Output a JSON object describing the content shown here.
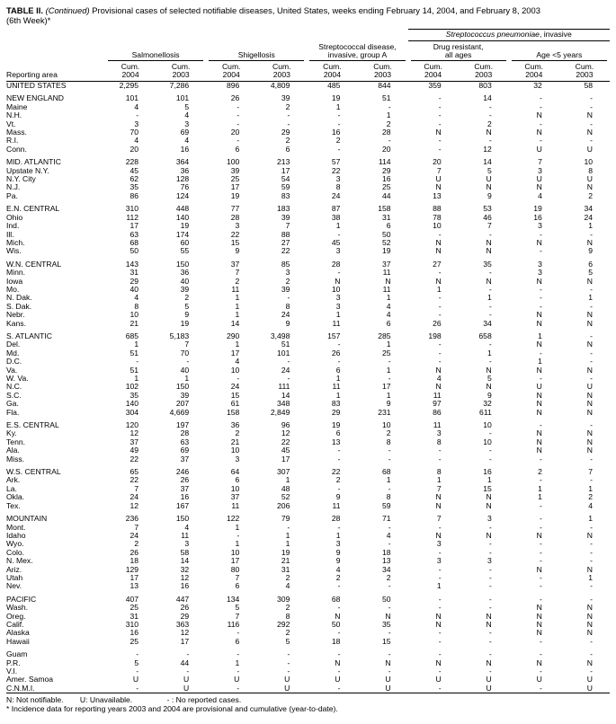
{
  "title": {
    "label": "TABLE II.",
    "continued": "(Continued)",
    "text": "Provisional cases of selected notifiable diseases, United States, weeks ending February 14, 2004, and February 8, 2003",
    "week": "(6th Week)*"
  },
  "header": {
    "reporting_area": "Reporting area",
    "cum": "Cum.",
    "years": [
      "2004",
      "2003"
    ],
    "groups": [
      "Salmonellosis",
      "Shigellosis",
      "Streptococcal disease,\ninvasive, group A",
      "Drug resistant,\nall ages",
      "Age <5 years"
    ],
    "strep_pneu_italic": "Streptococcus pneumoniae",
    "strep_pneu_rest": ", invasive"
  },
  "footnotes": {
    "n": "N: Not notifiable.",
    "u": "U: Unavailable.",
    "dash": "- : No reported cases.",
    "star": "* Incidence data for reporting years 2003 and 2004 are provisional and cumulative (year-to-date)."
  },
  "sections": [
    {
      "rows": [
        {
          "area": "UNITED STATES",
          "values": [
            "2,295",
            "7,286",
            "896",
            "4,809",
            "485",
            "844",
            "359",
            "803",
            "32",
            "58"
          ]
        }
      ]
    },
    {
      "rows": [
        {
          "area": "NEW ENGLAND",
          "values": [
            "101",
            "101",
            "26",
            "39",
            "19",
            "51",
            "-",
            "14",
            "-",
            "-"
          ]
        },
        {
          "area": "Maine",
          "values": [
            "4",
            "5",
            "-",
            "2",
            "1",
            "-",
            "-",
            "-",
            "-",
            "-"
          ]
        },
        {
          "area": "N.H.",
          "values": [
            "-",
            "4",
            "-",
            "-",
            "-",
            "1",
            "-",
            "-",
            "N",
            "N"
          ]
        },
        {
          "area": "Vt.",
          "values": [
            "3",
            "3",
            "-",
            "-",
            "-",
            "2",
            "-",
            "2",
            "-",
            "-"
          ]
        },
        {
          "area": "Mass.",
          "values": [
            "70",
            "69",
            "20",
            "29",
            "16",
            "28",
            "N",
            "N",
            "N",
            "N"
          ]
        },
        {
          "area": "R.I.",
          "values": [
            "4",
            "4",
            "-",
            "2",
            "2",
            "-",
            "-",
            "-",
            "-",
            "-"
          ]
        },
        {
          "area": "Conn.",
          "values": [
            "20",
            "16",
            "6",
            "6",
            "-",
            "20",
            "-",
            "12",
            "U",
            "U"
          ]
        }
      ]
    },
    {
      "rows": [
        {
          "area": "MID. ATLANTIC",
          "values": [
            "228",
            "364",
            "100",
            "213",
            "57",
            "114",
            "20",
            "14",
            "7",
            "10"
          ]
        },
        {
          "area": "Upstate N.Y.",
          "values": [
            "45",
            "36",
            "39",
            "17",
            "22",
            "29",
            "7",
            "5",
            "3",
            "8"
          ]
        },
        {
          "area": "N.Y. City",
          "values": [
            "62",
            "128",
            "25",
            "54",
            "3",
            "16",
            "U",
            "U",
            "U",
            "U"
          ]
        },
        {
          "area": "N.J.",
          "values": [
            "35",
            "76",
            "17",
            "59",
            "8",
            "25",
            "N",
            "N",
            "N",
            "N"
          ]
        },
        {
          "area": "Pa.",
          "values": [
            "86",
            "124",
            "19",
            "83",
            "24",
            "44",
            "13",
            "9",
            "4",
            "2"
          ]
        }
      ]
    },
    {
      "rows": [
        {
          "area": "E.N. CENTRAL",
          "values": [
            "310",
            "448",
            "77",
            "183",
            "87",
            "158",
            "88",
            "53",
            "19",
            "34"
          ]
        },
        {
          "area": "Ohio",
          "values": [
            "112",
            "140",
            "28",
            "39",
            "38",
            "31",
            "78",
            "46",
            "16",
            "24"
          ]
        },
        {
          "area": "Ind.",
          "values": [
            "17",
            "19",
            "3",
            "7",
            "1",
            "6",
            "10",
            "7",
            "3",
            "1"
          ]
        },
        {
          "area": "Ill.",
          "values": [
            "63",
            "174",
            "22",
            "88",
            "-",
            "50",
            "-",
            "-",
            "-",
            "-"
          ]
        },
        {
          "area": "Mich.",
          "values": [
            "68",
            "60",
            "15",
            "27",
            "45",
            "52",
            "N",
            "N",
            "N",
            "N"
          ]
        },
        {
          "area": "Wis.",
          "values": [
            "50",
            "55",
            "9",
            "22",
            "3",
            "19",
            "N",
            "N",
            "-",
            "9"
          ]
        }
      ]
    },
    {
      "rows": [
        {
          "area": "W.N. CENTRAL",
          "values": [
            "143",
            "150",
            "37",
            "85",
            "28",
            "37",
            "27",
            "35",
            "3",
            "6"
          ]
        },
        {
          "area": "Minn.",
          "values": [
            "31",
            "36",
            "7",
            "3",
            "-",
            "11",
            "-",
            "-",
            "3",
            "5"
          ]
        },
        {
          "area": "Iowa",
          "values": [
            "29",
            "40",
            "2",
            "2",
            "N",
            "N",
            "N",
            "N",
            "N",
            "N"
          ]
        },
        {
          "area": "Mo.",
          "values": [
            "40",
            "39",
            "11",
            "39",
            "10",
            "11",
            "1",
            "-",
            "-",
            "-"
          ]
        },
        {
          "area": "N. Dak.",
          "values": [
            "4",
            "2",
            "1",
            "-",
            "3",
            "1",
            "-",
            "1",
            "-",
            "1"
          ]
        },
        {
          "area": "S. Dak.",
          "values": [
            "8",
            "5",
            "1",
            "8",
            "3",
            "4",
            "-",
            "-",
            "-",
            "-"
          ]
        },
        {
          "area": "Nebr.",
          "values": [
            "10",
            "9",
            "1",
            "24",
            "1",
            "4",
            "-",
            "-",
            "N",
            "N"
          ]
        },
        {
          "area": "Kans.",
          "values": [
            "21",
            "19",
            "14",
            "9",
            "11",
            "6",
            "26",
            "34",
            "N",
            "N"
          ]
        }
      ]
    },
    {
      "rows": [
        {
          "area": "S. ATLANTIC",
          "values": [
            "685",
            "5,183",
            "290",
            "3,498",
            "157",
            "285",
            "198",
            "658",
            "1",
            "-"
          ]
        },
        {
          "area": "Del.",
          "values": [
            "1",
            "7",
            "1",
            "51",
            "-",
            "1",
            "-",
            "-",
            "N",
            "N"
          ]
        },
        {
          "area": "Md.",
          "values": [
            "51",
            "70",
            "17",
            "101",
            "26",
            "25",
            "-",
            "1",
            "-",
            "-"
          ]
        },
        {
          "area": "D.C.",
          "values": [
            "-",
            "-",
            "4",
            "-",
            "-",
            "-",
            "-",
            "-",
            "1",
            "-"
          ]
        },
        {
          "area": "Va.",
          "values": [
            "51",
            "40",
            "10",
            "24",
            "6",
            "1",
            "N",
            "N",
            "N",
            "N"
          ]
        },
        {
          "area": "W. Va.",
          "values": [
            "1",
            "1",
            "-",
            "-",
            "1",
            "-",
            "4",
            "5",
            "-",
            "-"
          ]
        },
        {
          "area": "N.C.",
          "values": [
            "102",
            "150",
            "24",
            "111",
            "11",
            "17",
            "N",
            "N",
            "U",
            "U"
          ]
        },
        {
          "area": "S.C.",
          "values": [
            "35",
            "39",
            "15",
            "14",
            "1",
            "1",
            "11",
            "9",
            "N",
            "N"
          ]
        },
        {
          "area": "Ga.",
          "values": [
            "140",
            "207",
            "61",
            "348",
            "83",
            "9",
            "97",
            "32",
            "N",
            "N"
          ]
        },
        {
          "area": "Fla.",
          "values": [
            "304",
            "4,669",
            "158",
            "2,849",
            "29",
            "231",
            "86",
            "611",
            "N",
            "N"
          ]
        }
      ]
    },
    {
      "rows": [
        {
          "area": "E.S. CENTRAL",
          "values": [
            "120",
            "197",
            "36",
            "96",
            "19",
            "10",
            "11",
            "10",
            "-",
            "-"
          ]
        },
        {
          "area": "Ky.",
          "values": [
            "12",
            "28",
            "2",
            "12",
            "6",
            "2",
            "3",
            "-",
            "N",
            "N"
          ]
        },
        {
          "area": "Tenn.",
          "values": [
            "37",
            "63",
            "21",
            "22",
            "13",
            "8",
            "8",
            "10",
            "N",
            "N"
          ]
        },
        {
          "area": "Ala.",
          "values": [
            "49",
            "69",
            "10",
            "45",
            "-",
            "-",
            "-",
            "-",
            "N",
            "N"
          ]
        },
        {
          "area": "Miss.",
          "values": [
            "22",
            "37",
            "3",
            "17",
            "-",
            "-",
            "-",
            "-",
            "-",
            "-"
          ]
        }
      ]
    },
    {
      "rows": [
        {
          "area": "W.S. CENTRAL",
          "values": [
            "65",
            "246",
            "64",
            "307",
            "22",
            "68",
            "8",
            "16",
            "2",
            "7"
          ]
        },
        {
          "area": "Ark.",
          "values": [
            "22",
            "26",
            "6",
            "1",
            "2",
            "1",
            "1",
            "1",
            "-",
            "-"
          ]
        },
        {
          "area": "La.",
          "values": [
            "7",
            "37",
            "10",
            "48",
            "-",
            "-",
            "7",
            "15",
            "1",
            "1"
          ]
        },
        {
          "area": "Okla.",
          "values": [
            "24",
            "16",
            "37",
            "52",
            "9",
            "8",
            "N",
            "N",
            "1",
            "2"
          ]
        },
        {
          "area": "Tex.",
          "values": [
            "12",
            "167",
            "11",
            "206",
            "11",
            "59",
            "N",
            "N",
            "-",
            "4"
          ]
        }
      ]
    },
    {
      "rows": [
        {
          "area": "MOUNTAIN",
          "values": [
            "236",
            "150",
            "122",
            "79",
            "28",
            "71",
            "7",
            "3",
            "-",
            "1"
          ]
        },
        {
          "area": "Mont.",
          "values": [
            "7",
            "4",
            "1",
            "-",
            "-",
            "-",
            "-",
            "-",
            "-",
            "-"
          ]
        },
        {
          "area": "Idaho",
          "values": [
            "24",
            "11",
            "-",
            "1",
            "1",
            "4",
            "N",
            "N",
            "N",
            "N"
          ]
        },
        {
          "area": "Wyo.",
          "values": [
            "2",
            "3",
            "1",
            "1",
            "3",
            "-",
            "3",
            "-",
            "-",
            "-"
          ]
        },
        {
          "area": "Colo.",
          "values": [
            "26",
            "58",
            "10",
            "19",
            "9",
            "18",
            "-",
            "-",
            "-",
            "-"
          ]
        },
        {
          "area": "N. Mex.",
          "values": [
            "18",
            "14",
            "17",
            "21",
            "9",
            "13",
            "3",
            "3",
            "-",
            "-"
          ]
        },
        {
          "area": "Ariz.",
          "values": [
            "129",
            "32",
            "80",
            "31",
            "4",
            "34",
            "-",
            "-",
            "N",
            "N"
          ]
        },
        {
          "area": "Utah",
          "values": [
            "17",
            "12",
            "7",
            "2",
            "2",
            "2",
            "-",
            "-",
            "-",
            "1"
          ]
        },
        {
          "area": "Nev.",
          "values": [
            "13",
            "16",
            "6",
            "4",
            "-",
            "-",
            "1",
            "-",
            "-",
            "-"
          ]
        }
      ]
    },
    {
      "rows": [
        {
          "area": "PACIFIC",
          "values": [
            "407",
            "447",
            "134",
            "309",
            "68",
            "50",
            "-",
            "-",
            "-",
            "-"
          ]
        },
        {
          "area": "Wash.",
          "values": [
            "25",
            "26",
            "5",
            "2",
            "-",
            "-",
            "-",
            "-",
            "N",
            "N"
          ]
        },
        {
          "area": "Oreg.",
          "values": [
            "31",
            "29",
            "7",
            "8",
            "N",
            "N",
            "N",
            "N",
            "N",
            "N"
          ]
        },
        {
          "area": "Calif.",
          "values": [
            "310",
            "363",
            "116",
            "292",
            "50",
            "35",
            "N",
            "N",
            "N",
            "N"
          ]
        },
        {
          "area": "Alaska",
          "values": [
            "16",
            "12",
            "-",
            "2",
            "-",
            "-",
            "-",
            "-",
            "N",
            "N"
          ]
        },
        {
          "area": "Hawaii",
          "values": [
            "25",
            "17",
            "6",
            "5",
            "18",
            "15",
            "-",
            "-",
            "-",
            "-"
          ]
        }
      ]
    },
    {
      "rows": [
        {
          "area": "Guam",
          "values": [
            "-",
            "-",
            "-",
            "-",
            "-",
            "-",
            "-",
            "-",
            "-",
            "-"
          ]
        },
        {
          "area": "P.R.",
          "values": [
            "5",
            "44",
            "1",
            "-",
            "N",
            "N",
            "N",
            "N",
            "N",
            "N"
          ]
        },
        {
          "area": "V.I.",
          "values": [
            "-",
            "-",
            "-",
            "-",
            "-",
            "-",
            "-",
            "-",
            "-",
            "-"
          ]
        },
        {
          "area": "Amer. Samoa",
          "values": [
            "U",
            "U",
            "U",
            "U",
            "U",
            "U",
            "U",
            "U",
            "U",
            "U"
          ]
        },
        {
          "area": "C.N.M.I.",
          "values": [
            "-",
            "U",
            "-",
            "U",
            "-",
            "U",
            "-",
            "U",
            "-",
            "U"
          ]
        }
      ]
    }
  ]
}
